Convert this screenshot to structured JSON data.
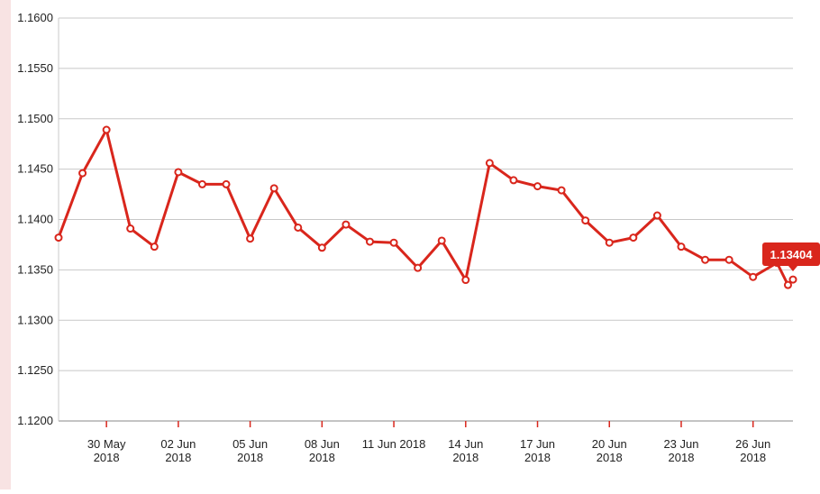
{
  "chart_data": {
    "type": "line",
    "x": [
      "2018-05-28",
      "2018-05-29",
      "2018-05-30",
      "2018-05-31",
      "2018-06-01",
      "2018-06-02",
      "2018-06-03",
      "2018-06-04",
      "2018-06-05",
      "2018-06-06",
      "2018-06-07",
      "2018-06-08",
      "2018-06-09",
      "2018-06-10",
      "2018-06-11",
      "2018-06-12",
      "2018-06-13",
      "2018-06-14",
      "2018-06-15",
      "2018-06-16",
      "2018-06-17",
      "2018-06-18",
      "2018-06-19",
      "2018-06-20",
      "2018-06-21",
      "2018-06-22",
      "2018-06-23",
      "2018-06-24",
      "2018-06-25",
      "2018-06-26",
      "2018-06-27",
      "2018-06-27T11:00",
      "2018-06-27T16:00"
    ],
    "series": [
      {
        "color": "#d9261c",
        "values": [
          1.1382,
          1.1446,
          1.1489,
          1.1391,
          1.1373,
          1.1447,
          1.1435,
          1.1435,
          1.1381,
          1.1431,
          1.1392,
          1.1372,
          1.1395,
          1.1378,
          1.1377,
          1.1352,
          1.1379,
          1.134,
          1.1456,
          1.1439,
          1.1433,
          1.1429,
          1.1399,
          1.1377,
          1.1382,
          1.1404,
          1.1373,
          1.136,
          1.136,
          1.1343,
          1.1357,
          1.1335,
          1.13404
        ],
        "value_labels": [
          null,
          null,
          null,
          null,
          null,
          null,
          null,
          null,
          null,
          null,
          null,
          null,
          null,
          null,
          null,
          null,
          null,
          null,
          null,
          null,
          null,
          null,
          null,
          null,
          null,
          null,
          null,
          null,
          null,
          null,
          null,
          null,
          "1.13404"
        ]
      }
    ],
    "xlim": [
      "2018-05-28",
      "2018-06-27T16:00"
    ],
    "xticks": [
      {
        "value": "2018-05-30",
        "label": "30 May\n2018"
      },
      {
        "value": "2018-06-02",
        "label": "02 Jun\n2018"
      },
      {
        "value": "2018-06-05",
        "label": "05 Jun\n2018"
      },
      {
        "value": "2018-06-08",
        "label": "08 Jun\n2018"
      },
      {
        "value": "2018-06-11",
        "label": "11 Jun 2018"
      },
      {
        "value": "2018-06-14",
        "label": "14 Jun\n2018"
      },
      {
        "value": "2018-06-17",
        "label": "17 Jun\n2018"
      },
      {
        "value": "2018-06-20",
        "label": "20 Jun\n2018"
      },
      {
        "value": "2018-06-23",
        "label": "23 Jun\n2018"
      },
      {
        "value": "2018-06-26",
        "label": "26 Jun\n2018"
      }
    ],
    "ylim": [
      1.12,
      1.16
    ],
    "yticks": [
      {
        "value": 1.12,
        "label": "1.1200"
      },
      {
        "value": 1.125,
        "label": "1.1250"
      },
      {
        "value": 1.13,
        "label": "1.1300"
      },
      {
        "value": 1.135,
        "label": "1.1350"
      },
      {
        "value": 1.14,
        "label": "1.1400"
      },
      {
        "value": 1.145,
        "label": "1.1450"
      },
      {
        "value": 1.15,
        "label": "1.1500"
      },
      {
        "value": 1.155,
        "label": "1.1550"
      },
      {
        "value": 1.16,
        "label": "1.1600"
      }
    ],
    "grid": true
  }
}
